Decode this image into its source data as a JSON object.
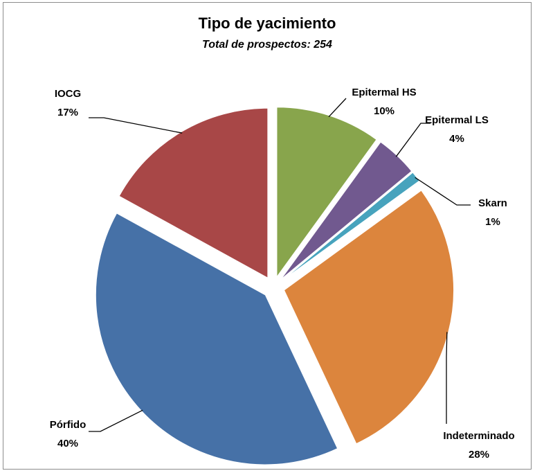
{
  "chart_data": {
    "type": "pie",
    "title": "Tipo de yacimiento",
    "subtitle": "Total de prospectos: 254",
    "categories": [
      "Epitermal HS",
      "Epitermal LS",
      "Skarn",
      "Indeterminado",
      "Pórfido",
      "IOCG"
    ],
    "values": [
      10,
      4,
      1,
      28,
      40,
      17
    ],
    "value_labels": [
      "10%",
      "4%",
      "1%",
      "28%",
      "40%",
      "17%"
    ],
    "colors": [
      "#88a54c",
      "#71598f",
      "#47a3bd",
      "#dc853d",
      "#4671a7",
      "#a84747"
    ]
  }
}
